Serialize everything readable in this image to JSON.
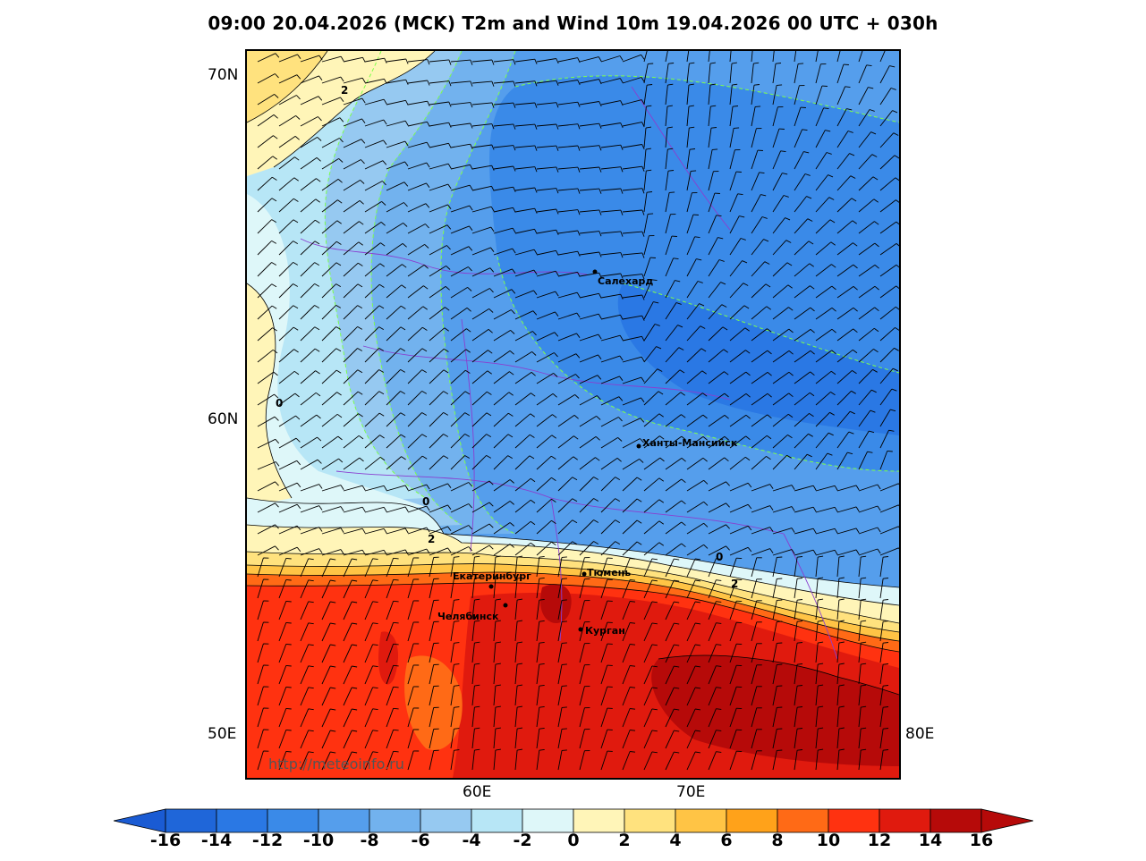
{
  "title": "09:00 20.04.2026 (MCK) T2m and Wind 10m 19.04.2026 00 UTC + 030h",
  "watermark": "http://meteoinfo.ru",
  "lat_labels": [
    "70N",
    "60N",
    "50E",
    "80E"
  ],
  "lon_labels": [
    "60E",
    "70E"
  ],
  "cities": [
    {
      "name": "Салехард"
    },
    {
      "name": "Ханты-Мансийск"
    },
    {
      "name": "Екатеринбург"
    },
    {
      "name": "Тюмень"
    },
    {
      "name": "Челябинск"
    },
    {
      "name": "Курган"
    }
  ],
  "contour_labels": [
    "2",
    "0",
    "0",
    "2",
    "0",
    "2"
  ],
  "colorbar": {
    "ticks": [
      "-16",
      "-14",
      "-12",
      "-10",
      "-8",
      "-6",
      "-4",
      "-2",
      "0",
      "2",
      "4",
      "6",
      "8",
      "10",
      "12",
      "14",
      "16"
    ],
    "colors": [
      "#1f66d9",
      "#2a78e4",
      "#3a8ae8",
      "#559eec",
      "#72b2ee",
      "#96c9f1",
      "#b7e6f6",
      "#def7f9",
      "#fff5b8",
      "#ffe27e",
      "#ffc445",
      "#ffa21a",
      "#ff6a16",
      "#ff3210",
      "#e01a0e",
      "#b60a09"
    ],
    "low_end_color": "#1a5bd3",
    "high_end_color": "#b60a09"
  }
}
